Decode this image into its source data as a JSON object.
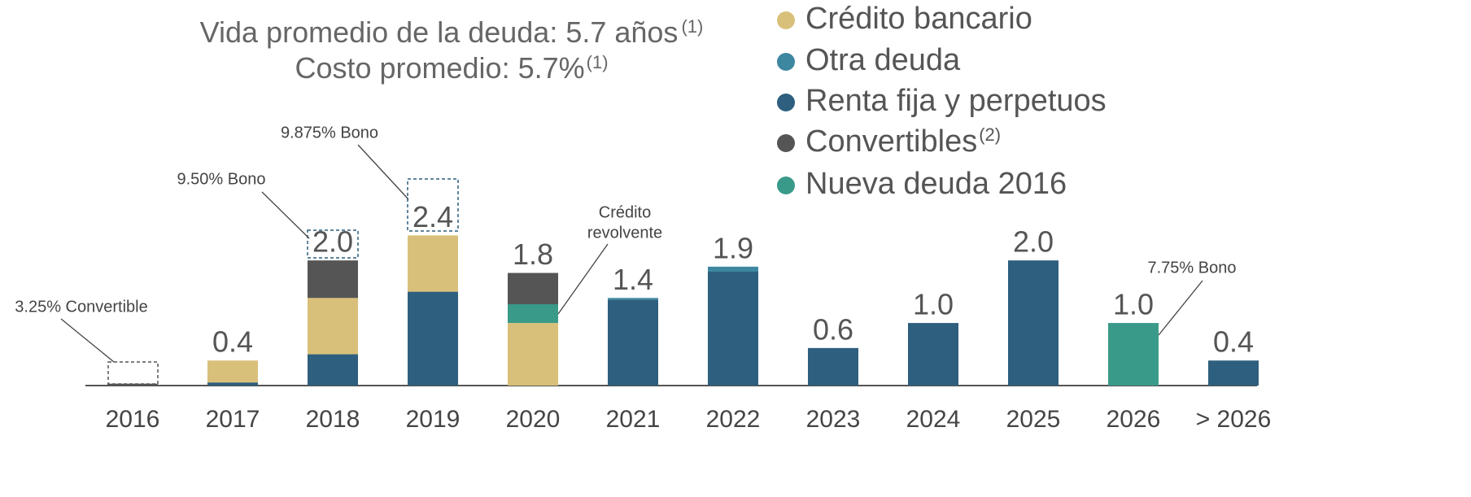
{
  "chart_data": {
    "type": "stacked_bar",
    "title": "Vida promedio de la deuda: 5.7 años",
    "title_note": "(1)",
    "subtitle": "Costo promedio: 5.7%",
    "subtitle_note": "(1)",
    "categories": [
      "2016",
      "2017",
      "2018",
      "2019",
      "2020",
      "2021",
      "2022",
      "2023",
      "2024",
      "2025",
      "2026",
      "> 2026"
    ],
    "series": [
      {
        "name": "Crédito bancario",
        "color": "#d9c07a",
        "values": [
          0,
          0.35,
          0.9,
          0.9,
          1.0,
          0,
          0,
          0,
          0,
          0,
          0,
          0
        ]
      },
      {
        "name": "Otra deuda",
        "color": "#3e87a0",
        "values": [
          0,
          0,
          0,
          0,
          0,
          0.03,
          0.08,
          0,
          0,
          0,
          0,
          0
        ]
      },
      {
        "name": "Renta fija y perpetuos",
        "color": "#2e5f7e",
        "values": [
          0,
          0.05,
          0.5,
          1.5,
          0,
          1.37,
          1.82,
          0.6,
          1.0,
          2.0,
          0,
          0.4
        ]
      },
      {
        "name": "Convertibles",
        "note": "(2)",
        "color": "#555555",
        "values": [
          0.03,
          0,
          0.6,
          0,
          0.5,
          0,
          0,
          0,
          0,
          0,
          0,
          0
        ]
      },
      {
        "name": "Nueva deuda 2016",
        "color": "#3a9a8a",
        "values": [
          0,
          0,
          0,
          0,
          0.3,
          0,
          0,
          0,
          0,
          0,
          1.0,
          0
        ]
      }
    ],
    "totals": [
      null,
      0.4,
      2.0,
      2.4,
      1.8,
      1.4,
      1.9,
      0.6,
      1.0,
      2.0,
      1.0,
      0.4
    ],
    "total_labels": [
      null,
      "0.4",
      "2.0",
      "2.4",
      "1.8",
      "1.4",
      "1.9",
      "0.6",
      "1.0",
      "2.0",
      "1.0",
      "0.4"
    ],
    "annotations": [
      "3.25% Convertible",
      "9.50% Bono",
      "9.875% Bono",
      "Crédito",
      "revolvente",
      "7.75% Bono"
    ],
    "ylim": [
      0,
      2.6
    ]
  }
}
